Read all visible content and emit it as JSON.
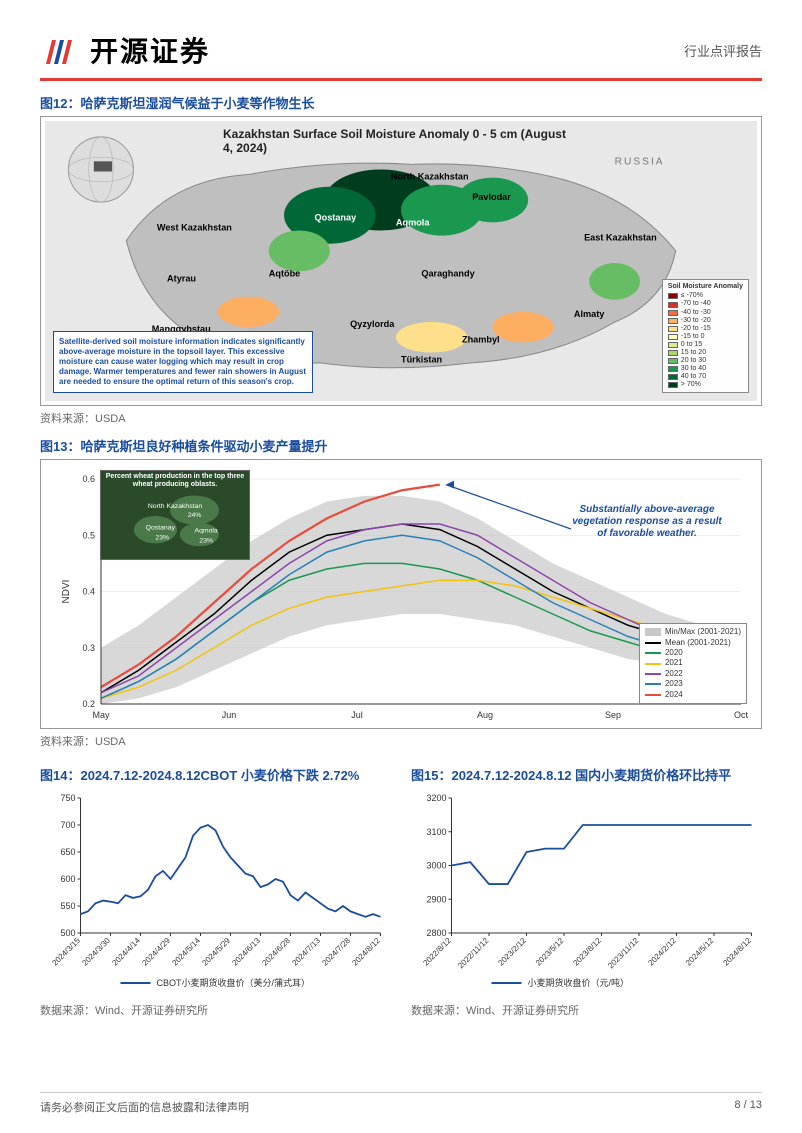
{
  "header": {
    "brand": "开源证券",
    "doc_type": "行业点评报告"
  },
  "fig12": {
    "title": "图12：哈萨克斯坦湿润气候益于小麦等作物生长",
    "map_title": "Kazakhstan Surface Soil Moisture Anomaly 0 - 5 cm (August 4, 2024)",
    "callout": "Satellite-derived soil moisture information indicates significantly above-average moisture in the topsoil layer. This excessive moisture can cause water logging which may result in crop damage. Warmer temperatures and fewer rain showers in August are needed to ensure the optimal return of this season's crop.",
    "regions": [
      "North Kazakhstan",
      "Qostanay",
      "Aqmola",
      "Pavlodar",
      "West Kazakhstan",
      "Aqtöbe",
      "Atyrau",
      "Manggyhstau",
      "Qaraghandy",
      "East Kazakhstan",
      "Qyzylorda",
      "Zhambyl",
      "Türkistan",
      "Almaty",
      "RUSSIA"
    ],
    "legend_title": "Soil Moisture Anomaly",
    "legend": [
      {
        "label": "≤ -70%",
        "color": "#8b0000"
      },
      {
        "label": "-70 to -40",
        "color": "#d73027"
      },
      {
        "label": "-40 to -30",
        "color": "#f46d43"
      },
      {
        "label": "-30 to -20",
        "color": "#fdae61"
      },
      {
        "label": "-20 to -15",
        "color": "#fee08b"
      },
      {
        "label": "-15 to 0",
        "color": "#ffffbf"
      },
      {
        "label": "0 to 15",
        "color": "#d9ef8b"
      },
      {
        "label": "15 to 20",
        "color": "#a6d96a"
      },
      {
        "label": "20 to 30",
        "color": "#66bd63"
      },
      {
        "label": "30 to 40",
        "color": "#1a9850"
      },
      {
        "label": "40 to 70",
        "color": "#006837"
      },
      {
        "label": "> 70%",
        "color": "#003d1f"
      }
    ],
    "source": "资料来源：USDA"
  },
  "fig13": {
    "title": "图13：哈萨克斯坦良好种植条件驱动小麦产量提升",
    "inset_title": "Percent wheat production in the top three wheat producing oblasts.",
    "inset_labels": [
      "North Kazakhstan 24%",
      "Qostanay 23%",
      "Aqmola 23%"
    ],
    "annotation": "Substantially above-average vegetation response as a result of favorable weather.",
    "ylabel": "NDVI",
    "xticks": [
      "May",
      "Jun",
      "Jul",
      "Aug",
      "Sep",
      "Oct"
    ],
    "ylim": [
      0.2,
      0.6
    ],
    "yticks": [
      0.2,
      0.3,
      0.4,
      0.5,
      0.6
    ],
    "band_color": "#c8c8c8",
    "series": {
      "minmax": {
        "label": "Min/Max (2001-2021)",
        "color": "#c8c8c8"
      },
      "mean": {
        "label": "Mean (2001-2021)",
        "color": "#000000",
        "values": [
          0.22,
          0.26,
          0.31,
          0.36,
          0.42,
          0.47,
          0.5,
          0.51,
          0.52,
          0.51,
          0.48,
          0.44,
          0.4,
          0.37,
          0.34,
          0.32,
          0.3,
          0.28
        ]
      },
      "2020": {
        "label": "2020",
        "color": "#1a9850",
        "values": [
          0.21,
          0.24,
          0.28,
          0.33,
          0.38,
          0.42,
          0.44,
          0.45,
          0.45,
          0.44,
          0.42,
          0.39,
          0.36,
          0.33,
          0.31,
          0.29,
          0.28,
          0.27
        ]
      },
      "2021": {
        "label": "2021",
        "color": "#f1c40f",
        "values": [
          0.21,
          0.23,
          0.26,
          0.3,
          0.34,
          0.37,
          0.39,
          0.4,
          0.41,
          0.42,
          0.42,
          0.41,
          0.39,
          0.37,
          0.35,
          0.33,
          0.31,
          0.29
        ]
      },
      "2022": {
        "label": "2022",
        "color": "#8e44ad",
        "values": [
          0.22,
          0.25,
          0.3,
          0.35,
          0.4,
          0.45,
          0.49,
          0.51,
          0.52,
          0.52,
          0.5,
          0.46,
          0.42,
          0.38,
          0.35,
          0.32,
          0.3,
          0.28
        ]
      },
      "2023": {
        "label": "2023",
        "color": "#2980b9",
        "values": [
          0.21,
          0.24,
          0.28,
          0.33,
          0.38,
          0.43,
          0.47,
          0.49,
          0.5,
          0.49,
          0.46,
          0.42,
          0.38,
          0.35,
          0.32,
          0.3,
          0.29,
          0.28
        ]
      },
      "2024": {
        "label": "2024",
        "color": "#e74c3c",
        "values": [
          0.23,
          0.27,
          0.32,
          0.38,
          0.44,
          0.49,
          0.53,
          0.56,
          0.58,
          0.59
        ]
      }
    },
    "legend_order": [
      "minmax",
      "mean",
      "2020",
      "2021",
      "2022",
      "2023",
      "2024"
    ],
    "source": "资料来源：USDA"
  },
  "fig14": {
    "title": "图14：2024.7.12-2024.8.12CBOT 小麦价格下跌 2.72%",
    "ylim": [
      500,
      750
    ],
    "yticks": [
      500,
      550,
      600,
      650,
      700,
      750
    ],
    "xticks": [
      "2024/3/15",
      "2024/3/30",
      "2024/4/14",
      "2024/4/29",
      "2024/5/14",
      "2024/5/29",
      "2024/6/13",
      "2024/6/28",
      "2024/7/13",
      "2024/7/28",
      "2024/8/12"
    ],
    "line_color": "#1a4d9e",
    "legend": "CBOT小麦期货收盘价（美分/蒲式耳）",
    "values": [
      535,
      540,
      555,
      560,
      558,
      555,
      570,
      565,
      568,
      580,
      605,
      615,
      600,
      620,
      640,
      680,
      695,
      700,
      690,
      660,
      640,
      625,
      610,
      605,
      585,
      590,
      600,
      595,
      570,
      560,
      575,
      565,
      555,
      545,
      540,
      550,
      540,
      535,
      530,
      535,
      530
    ],
    "source": "数据来源：Wind、开源证券研究所"
  },
  "fig15": {
    "title": "图15：2024.7.12-2024.8.12 国内小麦期货价格环比持平",
    "ylim": [
      2800,
      3200
    ],
    "yticks": [
      2800,
      2900,
      3000,
      3100,
      3200
    ],
    "xticks": [
      "2022/8/12",
      "2022/11/12",
      "2023/2/12",
      "2023/5/12",
      "2023/8/12",
      "2023/11/12",
      "2024/2/12",
      "2024/5/12",
      "2024/8/12"
    ],
    "line_color": "#1a4d9e",
    "legend": "小麦期货收盘价（元/吨）",
    "values": [
      3000,
      3010,
      2945,
      2945,
      3040,
      3050,
      3050,
      3120,
      3120,
      3120,
      3120,
      3120,
      3120,
      3120,
      3120,
      3120,
      3120
    ],
    "source": "数据来源：Wind、开源证券研究所"
  },
  "footer": {
    "disclaimer": "请务必参阅正文后面的信息披露和法律声明",
    "page": "8 / 13"
  },
  "colors": {
    "title_blue": "#1a4d9e",
    "brand_red": "#e53935"
  }
}
